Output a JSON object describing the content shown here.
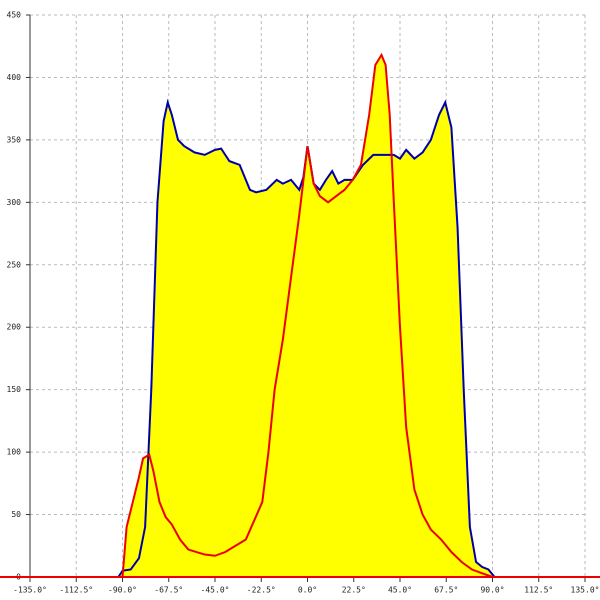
{
  "chart_data": {
    "type": "area",
    "fill_color": "#ffff00",
    "grid": true,
    "xlim": [
      -135,
      135
    ],
    "xticks": [
      {
        "value": -135,
        "label": "-135.0°"
      },
      {
        "value": -112.5,
        "label": "-112.5°"
      },
      {
        "value": -90,
        "label": "-90.0°"
      },
      {
        "value": -67.5,
        "label": "-67.5°"
      },
      {
        "value": -45,
        "label": "-45.0°"
      },
      {
        "value": -22.5,
        "label": "-22.5°"
      },
      {
        "value": 0,
        "label": "0.0°"
      },
      {
        "value": 22.5,
        "label": "22.5°"
      },
      {
        "value": 45,
        "label": "45.0°"
      },
      {
        "value": 67.5,
        "label": "67.5°"
      },
      {
        "value": 90,
        "label": "90.0°"
      },
      {
        "value": 112.5,
        "label": "112.5°"
      },
      {
        "value": 135,
        "label": "135.0°"
      }
    ],
    "ylim": [
      0,
      450
    ],
    "yticks": [
      0,
      50,
      100,
      150,
      200,
      250,
      300,
      350,
      400,
      450
    ],
    "series": [
      {
        "color": "#0000aa",
        "x": [
          -92,
          -90,
          -86,
          -82,
          -79,
          -76,
          -73,
          -70,
          -68,
          -66,
          -63,
          -60,
          -55,
          -50,
          -45,
          -42,
          -38,
          -33,
          -28,
          -25,
          -20,
          -15,
          -12,
          -8,
          -4,
          -2,
          0,
          3,
          6,
          9,
          12,
          15,
          18,
          22,
          27,
          32,
          37,
          42,
          45,
          48,
          52,
          56,
          60,
          64,
          67,
          70,
          73,
          76,
          79,
          82,
          85,
          88,
          91
        ],
        "values": [
          0,
          5,
          6,
          15,
          40,
          150,
          300,
          365,
          380,
          370,
          350,
          345,
          340,
          338,
          342,
          343,
          333,
          330,
          310,
          308,
          310,
          318,
          315,
          318,
          310,
          320,
          345,
          315,
          310,
          318,
          325,
          315,
          318,
          318,
          330,
          338,
          338,
          338,
          335,
          342,
          335,
          340,
          350,
          370,
          380,
          360,
          280,
          150,
          40,
          12,
          8,
          6,
          0
        ]
      },
      {
        "color": "#ee0000",
        "x": [
          -90,
          -88,
          -85,
          -82,
          -80,
          -77,
          -75,
          -72,
          -69,
          -66,
          -62,
          -58,
          -54,
          -50,
          -45,
          -40,
          -35,
          -30,
          -26,
          -22,
          -19,
          -16,
          -12,
          -8,
          -4,
          0,
          3,
          6,
          10,
          14,
          18,
          22,
          26,
          30,
          33,
          36,
          38,
          40,
          42,
          45,
          48,
          52,
          56,
          60,
          65,
          70,
          75,
          80,
          85,
          90
        ],
        "values": [
          0,
          40,
          60,
          80,
          95,
          98,
          85,
          60,
          48,
          42,
          30,
          22,
          20,
          18,
          17,
          20,
          25,
          30,
          45,
          60,
          100,
          150,
          190,
          240,
          290,
          345,
          315,
          305,
          300,
          305,
          310,
          318,
          330,
          370,
          410,
          418,
          410,
          370,
          300,
          200,
          120,
          70,
          50,
          38,
          30,
          20,
          12,
          6,
          3,
          0
        ]
      }
    ]
  }
}
